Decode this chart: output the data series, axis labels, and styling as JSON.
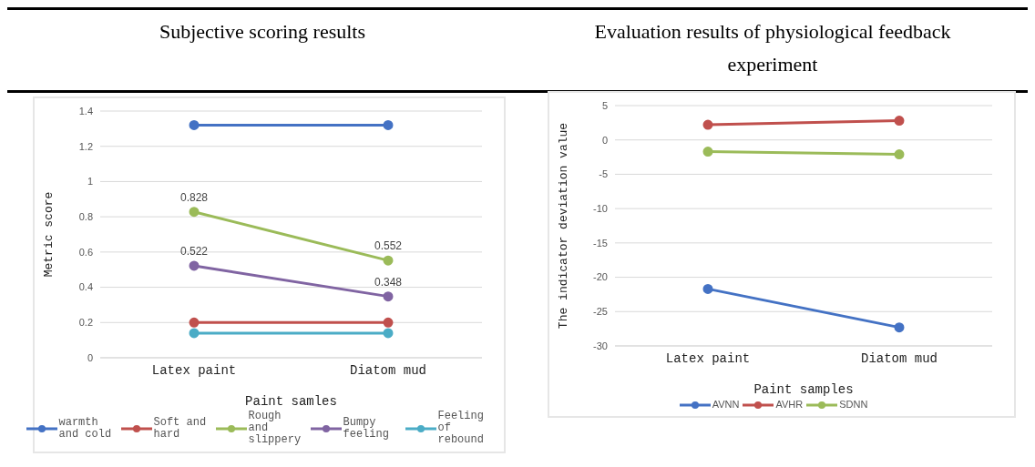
{
  "chart_data": [
    {
      "type": "line",
      "title": "Subjective scoring results",
      "xlabel": "Paint samles",
      "ylabel": "Metric score",
      "categories": [
        "Latex paint",
        "Diatom mud"
      ],
      "ylim": [
        0,
        1.4
      ],
      "yticks": [
        0,
        0.2,
        0.4,
        0.6,
        0.8,
        1,
        1.2,
        1.4
      ],
      "grid": "y",
      "legend": "bottom",
      "marker": "circle",
      "series": [
        {
          "name": "warmth and cold",
          "color": "#4472c4",
          "values": [
            1.32,
            1.32
          ]
        },
        {
          "name": "Soft and hard",
          "color": "#c0504d",
          "values": [
            0.2,
            0.2
          ]
        },
        {
          "name": "Rough and slippery",
          "color": "#9bbb59",
          "values": [
            0.828,
            0.552
          ],
          "value_labels": [
            "0.828",
            "0.552"
          ]
        },
        {
          "name": "Bumpy feeling",
          "color": "#8064a2",
          "values": [
            0.522,
            0.348
          ],
          "value_labels": [
            "0.522",
            "0.348"
          ]
        },
        {
          "name": "Feeling of rebound",
          "color": "#4bacc6",
          "values": [
            0.14,
            0.14
          ]
        }
      ]
    },
    {
      "type": "line",
      "title": "Evaluation results of physiological feedback experiment",
      "xlabel": "Paint samples",
      "ylabel": "The indicator deviation value",
      "categories": [
        "Latex paint",
        "Diatom mud"
      ],
      "ylim": [
        -30,
        5
      ],
      "yticks": [
        -30,
        -25,
        -20,
        -15,
        -10,
        -5,
        0,
        5
      ],
      "grid": "y",
      "legend": "bottom",
      "marker": "circle",
      "series": [
        {
          "name": "AVNN",
          "color": "#4472c4",
          "values": [
            -21.7,
            -27.3
          ]
        },
        {
          "name": "AVHR",
          "color": "#c0504d",
          "values": [
            2.2,
            2.8
          ]
        },
        {
          "name": "SDNN",
          "color": "#9bbb59",
          "values": [
            -1.7,
            -2.1
          ]
        }
      ]
    }
  ]
}
